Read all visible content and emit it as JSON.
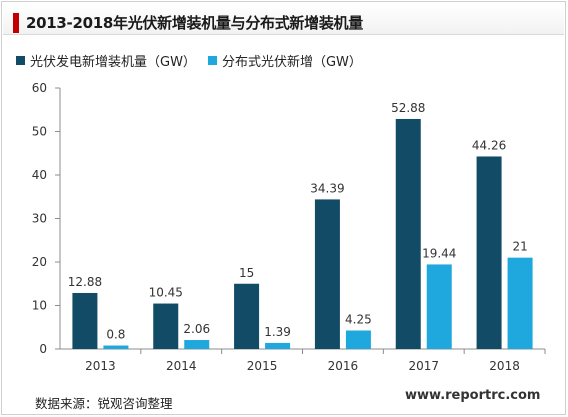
{
  "title": "2013-2018年光伏新增装机量与分布式新增装机量",
  "source": "数据来源：锐观咨询整理",
  "watermark": "www.reportrc.com",
  "colors": {
    "series1": "#124b66",
    "series2": "#1fa8dd",
    "accent": "#c00000"
  },
  "chart_data": {
    "type": "bar",
    "title": "2013-2018年光伏新增装机量与分布式新增装机量",
    "categories": [
      "2013",
      "2014",
      "2015",
      "2016",
      "2017",
      "2018"
    ],
    "series": [
      {
        "name": "光伏发电新增装机量（GW）",
        "values": [
          12.88,
          10.45,
          15,
          34.39,
          52.88,
          44.26
        ],
        "labels": [
          "12.88",
          "10.45",
          "15",
          "34.39",
          "52.88",
          "44.26"
        ]
      },
      {
        "name": "分布式光伏新增（GW）",
        "values": [
          0.8,
          2.06,
          1.39,
          4.25,
          19.44,
          21
        ],
        "labels": [
          "0.8",
          "2.06",
          "1.39",
          "4.25",
          "19.44",
          "21"
        ]
      }
    ],
    "ylim": [
      0,
      60
    ],
    "yticks": [
      "0",
      "10",
      "20",
      "30",
      "40",
      "50",
      "60"
    ],
    "grid": false,
    "legend_position": "top-left"
  }
}
